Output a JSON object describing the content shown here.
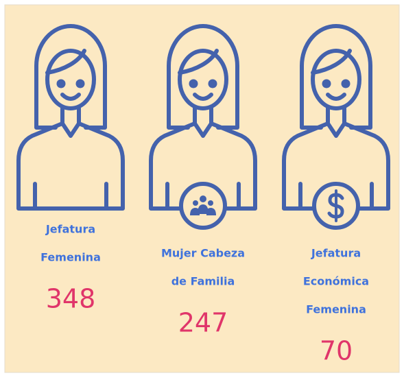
{
  "items": [
    {
      "label_lines": [
        "Jefatura",
        "Femenina"
      ],
      "value": 348
    },
    {
      "label_lines": [
        "Mujer Cabeza",
        "de Familia"
      ],
      "value": 247
    },
    {
      "label_lines": [
        "Jefatura",
        "Económica",
        "Femenina"
      ],
      "value": 70
    }
  ]
}
